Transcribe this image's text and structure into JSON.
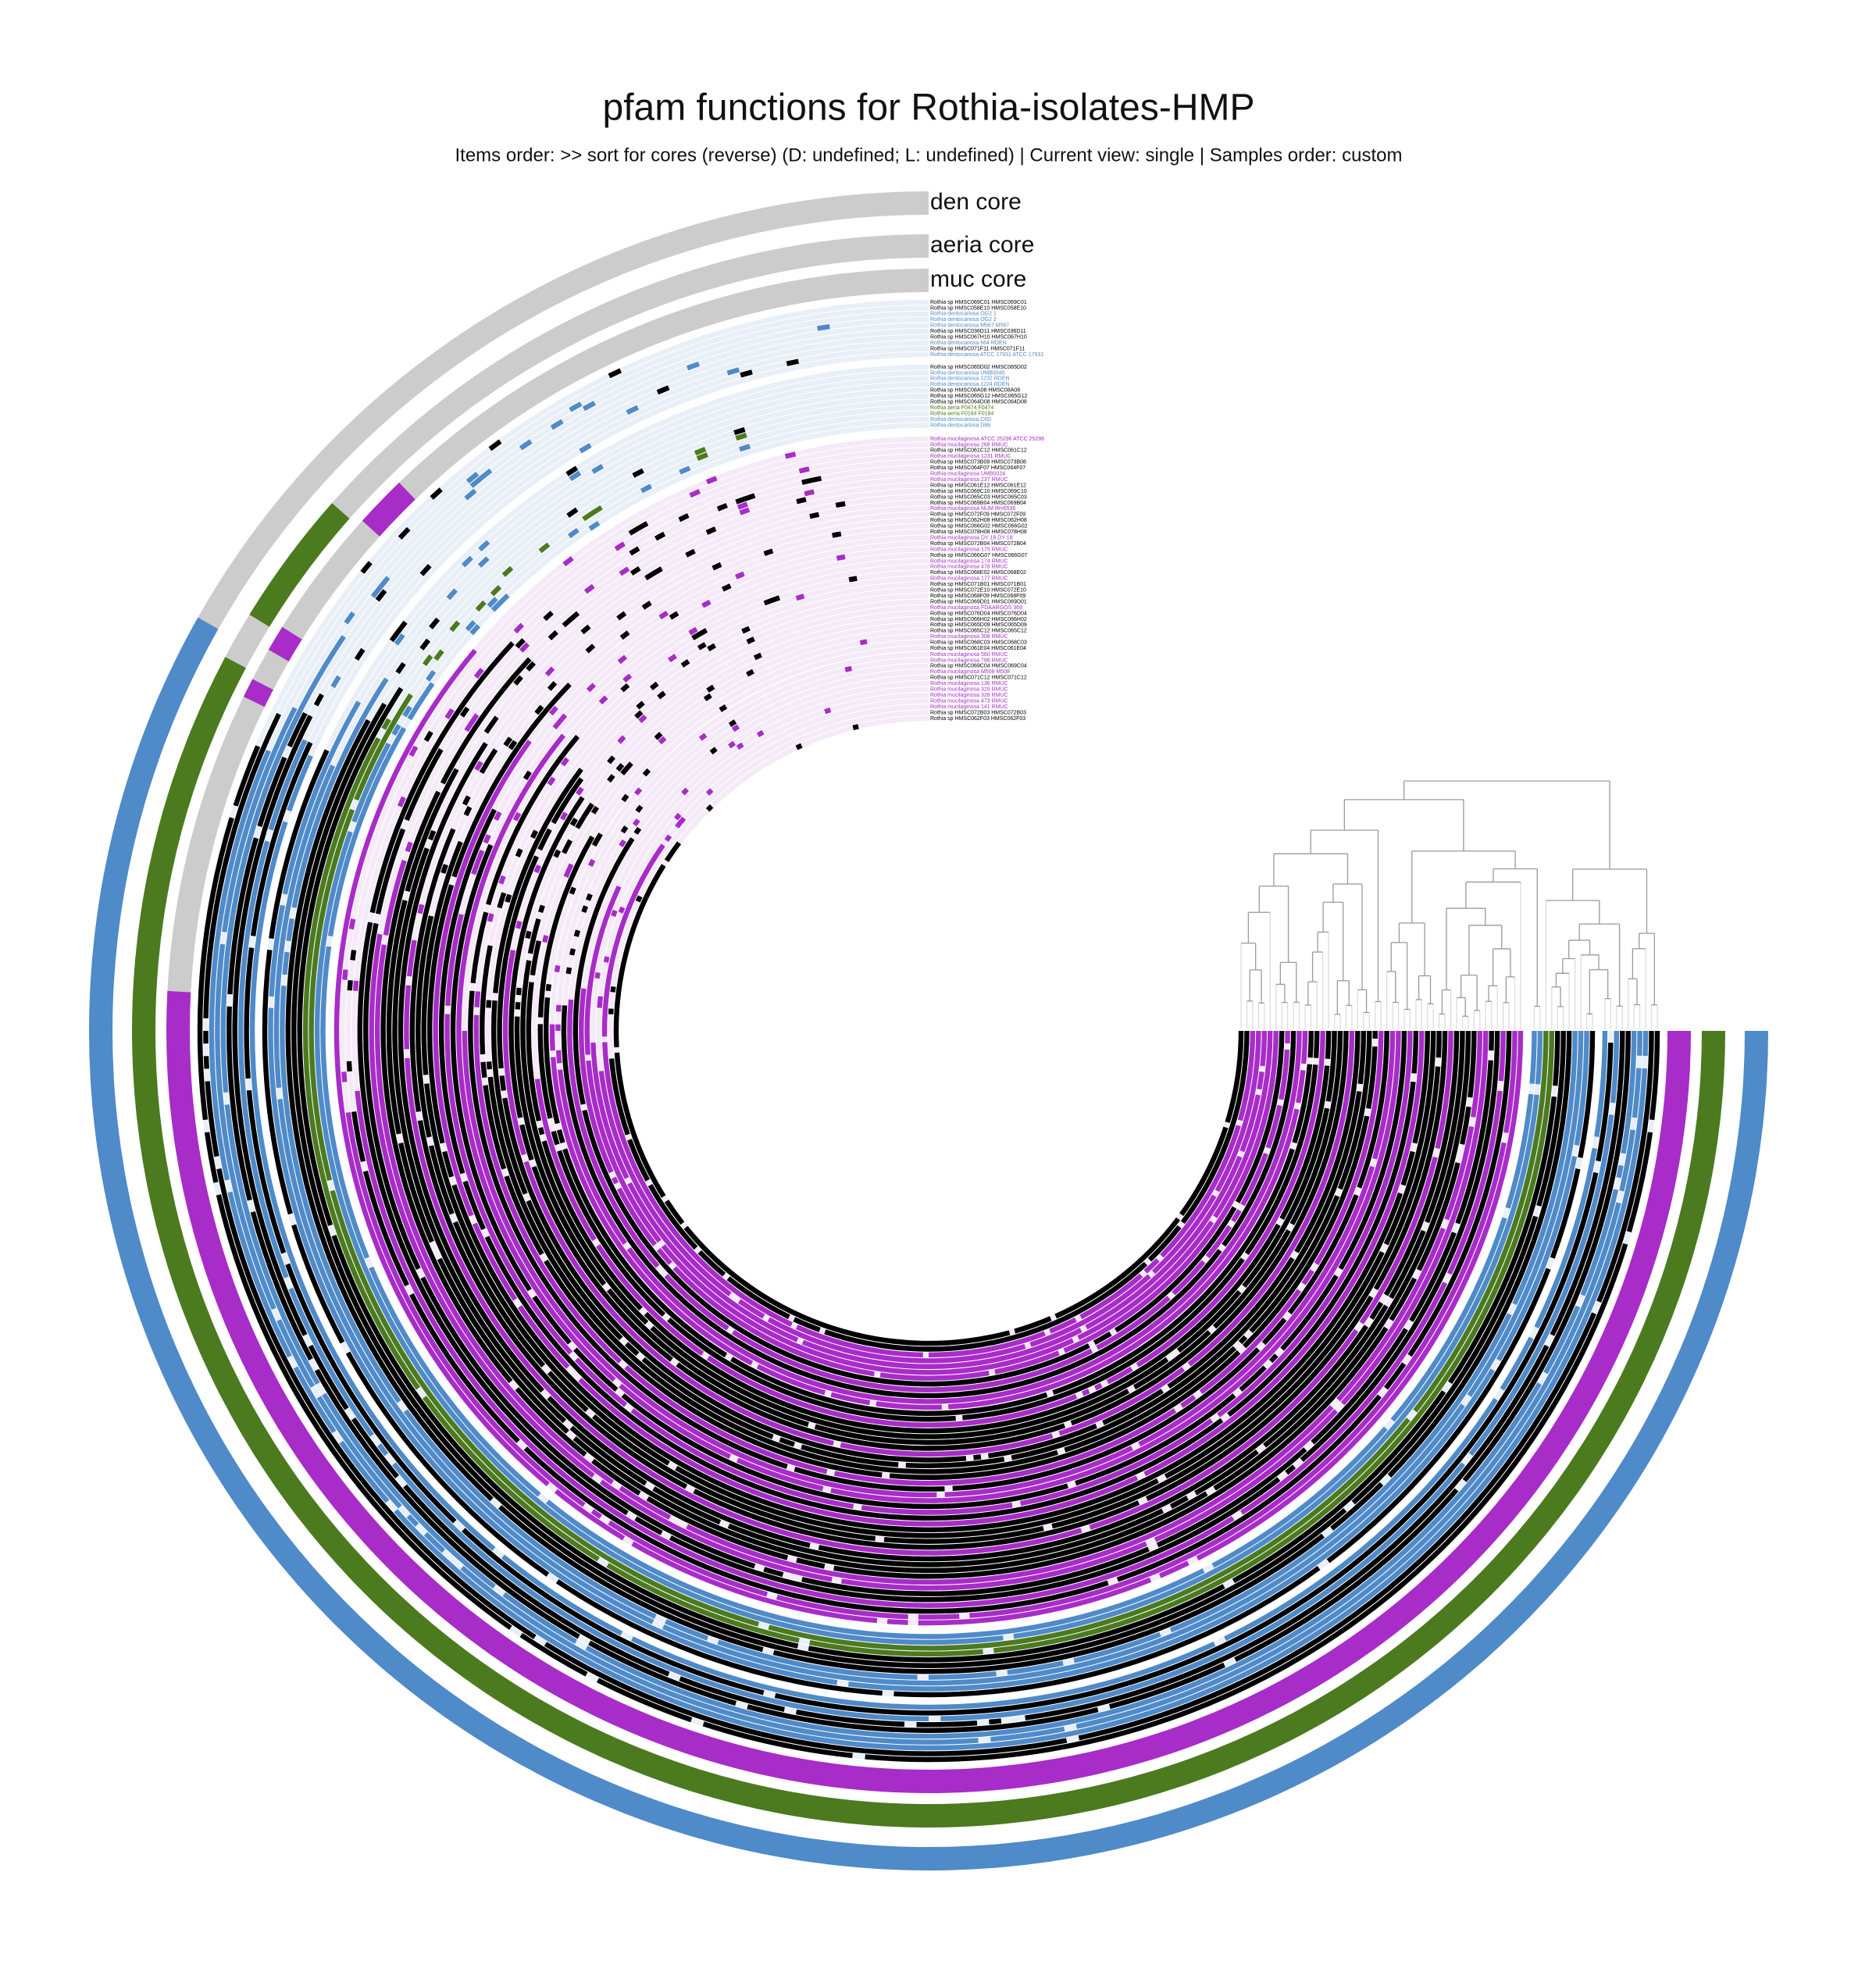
{
  "title": "pfam functions for Rothia-isolates-HMP",
  "subtitle": "Items order: >> sort for cores (reverse) (D: undefined; L: undefined) | Current view: single | Samples order: custom",
  "layers": [
    {
      "name": "den core",
      "color": "#4f8ac9"
    },
    {
      "name": "aeria core",
      "color": "#4b7a1f"
    },
    {
      "name": "muc core",
      "color": "#a82cc8"
    }
  ],
  "sample_groups": [
    [
      {
        "name": "Rothia sp HMSC069C01 HMSC069C01",
        "color": "#000000"
      },
      {
        "name": "Rothia sp HMSC058E10 HMSC058E10",
        "color": "#000000"
      },
      {
        "name": "Rothia dentocariosa OG2 1",
        "color": "#4f8ac9"
      },
      {
        "name": "Rothia dentocariosa OG2 2",
        "color": "#4f8ac9"
      },
      {
        "name": "Rothia dentocariosa M567 M567",
        "color": "#4f8ac9"
      },
      {
        "name": "Rothia sp HMSC036D11 HMSC036D11",
        "color": "#000000"
      },
      {
        "name": "Rothia sp HMSC067H10 HMSC067H10",
        "color": "#000000"
      },
      {
        "name": "Rothia dentocariosa 664 RDEN",
        "color": "#4f8ac9"
      },
      {
        "name": "Rothia sp HMSC071F11 HMSC071F11",
        "color": "#000000"
      },
      {
        "name": "Rothia dentocariosa ATCC 17931 ATCC 17931",
        "color": "#4f8ac9"
      }
    ],
    [
      {
        "name": "Rothia sp HMSC065D02 HMSC065D02",
        "color": "#000000"
      },
      {
        "name": "Rothia dentocariosa UMB0040",
        "color": "#4f8ac9"
      },
      {
        "name": "Rothia dentocariosa 1232 RDEN",
        "color": "#4f8ac9"
      },
      {
        "name": "Rothia dentocariosa 1224 RDEN",
        "color": "#4f8ac9"
      },
      {
        "name": "Rothia sp HMSC08A08 HMSC08A08",
        "color": "#000000"
      },
      {
        "name": "Rothia sp HMSC065G12 HMSC065G12",
        "color": "#000000"
      },
      {
        "name": "Rothia sp HMSC064D08 HMSC064D08",
        "color": "#000000"
      },
      {
        "name": "Rothia aeria F0474 F0474",
        "color": "#4b7a1f"
      },
      {
        "name": "Rothia aeria F0184 F0184",
        "color": "#4b7a1f"
      },
      {
        "name": "Rothia dentocariosa C6D",
        "color": "#4f8ac9"
      },
      {
        "name": "Rothia dentocariosa D86",
        "color": "#4f8ac9"
      }
    ],
    [
      {
        "name": "Rothia mucilaginosa ATCC 25296 ATCC 25296",
        "color": "#a82cc8"
      },
      {
        "name": "Rothia mucilaginosa 268 RMUC",
        "color": "#a82cc8"
      },
      {
        "name": "Rothia sp HMSC061C12 HMSC061C12",
        "color": "#000000"
      },
      {
        "name": "Rothia mucilaginosa 1231 RMUC",
        "color": "#a82cc8"
      },
      {
        "name": "Rothia sp HMSC073B08 HMSC073B08",
        "color": "#000000"
      },
      {
        "name": "Rothia sp HMSC064F07 HMSC064F07",
        "color": "#000000"
      },
      {
        "name": "Rothia mucilaginosa UMB0024",
        "color": "#a82cc8"
      },
      {
        "name": "Rothia mucilaginosa 237 RMUC",
        "color": "#a82cc8"
      },
      {
        "name": "Rothia sp HMSC061E12 HMSC061E12",
        "color": "#000000"
      },
      {
        "name": "Rothia sp HMSC069C10 HMSC069C10",
        "color": "#000000"
      },
      {
        "name": "Rothia sp HMSC065C03 HMSC065C03",
        "color": "#000000"
      },
      {
        "name": "Rothia sp HMSC069B04 HMSC069B04",
        "color": "#000000"
      },
      {
        "name": "Rothia mucilaginosa NUM Rm6536",
        "color": "#a82cc8"
      },
      {
        "name": "Rothia sp HMSC072F09 HMSC072F09",
        "color": "#000000"
      },
      {
        "name": "Rothia sp HMSC062H08 HMSC062H08",
        "color": "#000000"
      },
      {
        "name": "Rothia sp HMSC066G02 HMSC066G02",
        "color": "#000000"
      },
      {
        "name": "Rothia sp HMSC078H08 HMSC078H08",
        "color": "#000000"
      },
      {
        "name": "Rothia mucilaginosa DY 18 DY 18",
        "color": "#a82cc8"
      },
      {
        "name": "Rothia sp HMSC072B04 HMSC072B04",
        "color": "#000000"
      },
      {
        "name": "Rothia mucilaginosa 175 RMUC",
        "color": "#a82cc8"
      },
      {
        "name": "Rothia sp HMSC066G07 HMSC066G07",
        "color": "#000000"
      },
      {
        "name": "Rothia mucilaginosa 174 RMUC",
        "color": "#a82cc8"
      },
      {
        "name": "Rothia mucilaginosa 478 RMUC",
        "color": "#a82cc8"
      },
      {
        "name": "Rothia sp HMSC068E02 HMSC068E02",
        "color": "#000000"
      },
      {
        "name": "Rothia mucilaginosa 177 RMUC",
        "color": "#a82cc8"
      },
      {
        "name": "Rothia sp HMSC071B01 HMSC071B01",
        "color": "#000000"
      },
      {
        "name": "Rothia sp HMSC072E10 HMSC072E10",
        "color": "#000000"
      },
      {
        "name": "Rothia sp HMSC068F09 HMSC068F09",
        "color": "#000000"
      },
      {
        "name": "Rothia sp HMSC069D01 HMSC069D01",
        "color": "#000000"
      },
      {
        "name": "Rothia mucilaginosa FDAARGOS 369",
        "color": "#a82cc8"
      },
      {
        "name": "Rothia sp HMSC076D04 HMSC076D04",
        "color": "#000000"
      },
      {
        "name": "Rothia sp HMSC066H02 HMSC066H02",
        "color": "#000000"
      },
      {
        "name": "Rothia sp HMSC065D09 HMSC065D09",
        "color": "#000000"
      },
      {
        "name": "Rothia sp HMSC065C12 HMSC065C12",
        "color": "#000000"
      },
      {
        "name": "Rothia mucilaginosa 308 RMUC",
        "color": "#a82cc8"
      },
      {
        "name": "Rothia sp HMSC068C03 HMSC068C03",
        "color": "#000000"
      },
      {
        "name": "Rothia sp HMSC061E04 HMSC061E04",
        "color": "#000000"
      }
    ],
    [
      {
        "name": "Rothia mucilaginosa 560 RMUC",
        "color": "#a82cc8"
      },
      {
        "name": "Rothia mucilaginosa 788 RMUC",
        "color": "#a82cc8"
      },
      {
        "name": "Rothia sp HMSC069C04 HMSC069C04",
        "color": "#000000"
      },
      {
        "name": "Rothia mucilaginosa M508 M508",
        "color": "#a82cc8"
      },
      {
        "name": "Rothia sp HMSC071C12 HMSC071C12",
        "color": "#000000"
      },
      {
        "name": "Rothia mucilaginosa 136 RMUC",
        "color": "#a82cc8"
      },
      {
        "name": "Rothia mucilaginosa 329 RMUC",
        "color": "#a82cc8"
      },
      {
        "name": "Rothia mucilaginosa 328 RMUC",
        "color": "#a82cc8"
      },
      {
        "name": "Rothia mucilaginosa 473 RMUC",
        "color": "#a82cc8"
      },
      {
        "name": "Rothia mucilaginosa 141 RMUC",
        "color": "#a82cc8"
      },
      {
        "name": "Rothia sp HMSC072B03 HMSC072B03",
        "color": "#000000"
      },
      {
        "name": "Rothia sp HMSC062F03 HMSC062F03",
        "color": "#000000"
      }
    ]
  ]
}
